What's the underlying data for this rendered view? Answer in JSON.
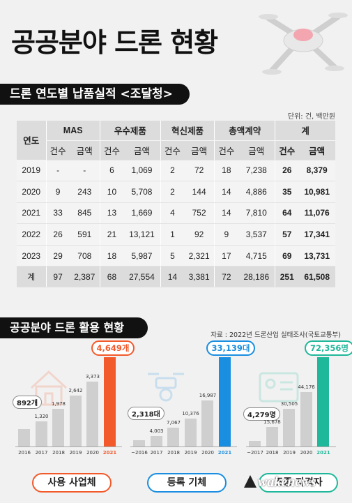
{
  "title": "공공분야 드론 현황",
  "section1": {
    "title": "드론 연도별 납품실적 <조달청>",
    "unit": "단위: 건, 백만원",
    "head": {
      "year": "연도",
      "groups": [
        "MAS",
        "우수제품",
        "혁신제품",
        "총액계약",
        "계"
      ],
      "count": "건수",
      "amount": "금액"
    },
    "rows": [
      [
        "2019",
        "-",
        "-",
        "6",
        "1,069",
        "2",
        "72",
        "18",
        "7,238",
        "26",
        "8,379"
      ],
      [
        "2020",
        "9",
        "243",
        "10",
        "5,708",
        "2",
        "144",
        "14",
        "4,886",
        "35",
        "10,981"
      ],
      [
        "2021",
        "33",
        "845",
        "13",
        "1,669",
        "4",
        "752",
        "14",
        "7,810",
        "64",
        "11,076"
      ],
      [
        "2022",
        "26",
        "591",
        "21",
        "13,121",
        "1",
        "92",
        "9",
        "3,537",
        "57",
        "17,341"
      ],
      [
        "2023",
        "29",
        "708",
        "18",
        "5,987",
        "5",
        "2,321",
        "17",
        "4,715",
        "69",
        "13,731"
      ]
    ],
    "total": [
      "계",
      "97",
      "2,387",
      "68",
      "27,554",
      "14",
      "3,381",
      "72",
      "28,186",
      "251",
      "61,508"
    ]
  },
  "section2": {
    "title": "공공분야 드론 활용 현황",
    "source": "자료 : 2022년 드론산업 실태조사(국토교통부)"
  },
  "chart_data": [
    {
      "type": "bar",
      "categories": [
        "2016",
        "2017",
        "2018",
        "2019",
        "2020",
        "2021"
      ],
      "values": [
        892,
        1320,
        1978,
        2642,
        3373,
        4649
      ],
      "labels": [
        "892개",
        "1,320",
        "1,978",
        "2,642",
        "3,373",
        "4,649개"
      ],
      "xlabel": "사용 사업체",
      "highlight_color": "#f25a2b"
    },
    {
      "type": "bar",
      "categories": [
        "~2016",
        "2017",
        "2018",
        "2019",
        "2020",
        "2021"
      ],
      "values": [
        2318,
        4003,
        7067,
        10376,
        16987,
        33139
      ],
      "labels": [
        "2,318대",
        "4,003",
        "7,067",
        "10,376",
        "16,987",
        "33,139대"
      ],
      "xlabel": "등록 기체",
      "highlight_color": "#1a8ee0"
    },
    {
      "type": "bar",
      "categories": [
        "~2017",
        "2018",
        "2019",
        "2020",
        "2021"
      ],
      "values": [
        4279,
        15678,
        30505,
        44176,
        72356
      ],
      "labels": [
        "4,279명",
        "15,678",
        "30,505",
        "44,176",
        "72,356명"
      ],
      "xlabel": "조종 자격자",
      "highlight_color": "#1fb89a"
    }
  ],
  "watermark": "Awakenews"
}
